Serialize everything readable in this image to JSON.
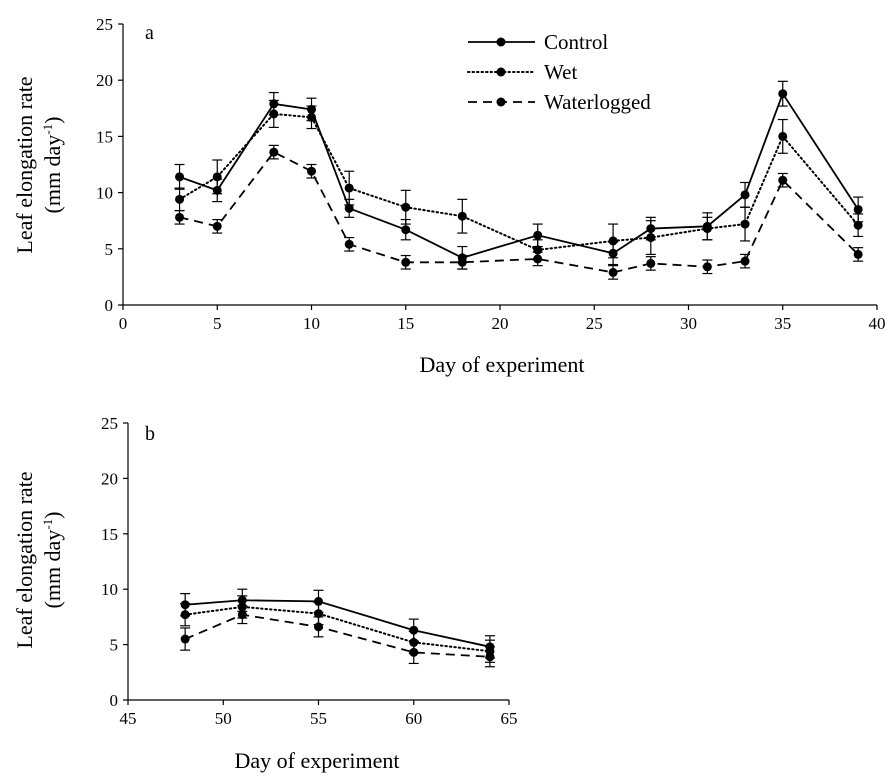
{
  "chart_data": [
    {
      "panel": "a",
      "type": "line",
      "xlabel": "Day of experiment",
      "ylabel": "Leaf elongation rate",
      "ylabel_unit": "(mm day",
      "ylabel_unit_sup": "-1",
      "ylabel_unit_close": ")",
      "xlim": [
        0,
        40
      ],
      "ylim": [
        0,
        25
      ],
      "xticks": [
        0,
        5,
        10,
        15,
        20,
        25,
        30,
        35,
        40
      ],
      "yticks": [
        0,
        5,
        10,
        15,
        20,
        25
      ],
      "grid": false,
      "legend": "top-center",
      "x": [
        3,
        5,
        8,
        10,
        12,
        15,
        18,
        22,
        26,
        28,
        31,
        33,
        35,
        39
      ],
      "series": [
        {
          "name": "Control",
          "style": "solid",
          "values": [
            11.4,
            10.2,
            17.9,
            17.4,
            8.6,
            6.7,
            4.2,
            6.2,
            4.6,
            6.8,
            7.0,
            9.8,
            18.8,
            8.5
          ],
          "errors": [
            1.1,
            1.0,
            1.0,
            1.0,
            0.8,
            0.9,
            1.0,
            1.0,
            1.0,
            1.0,
            1.2,
            1.1,
            1.1,
            1.1
          ]
        },
        {
          "name": "Wet",
          "style": "dotted",
          "values": [
            9.4,
            11.4,
            17.0,
            16.7,
            10.4,
            8.7,
            7.9,
            4.9,
            5.7,
            6.0,
            6.8,
            7.2,
            15.0,
            7.1
          ],
          "errors": [
            1.0,
            1.5,
            1.2,
            1.0,
            1.5,
            1.5,
            1.5,
            0.9,
            1.5,
            1.5,
            1.0,
            1.5,
            1.5,
            1.0
          ]
        },
        {
          "name": "Waterlogged",
          "style": "dashed",
          "values": [
            7.8,
            7.0,
            13.6,
            11.9,
            5.4,
            3.8,
            3.8,
            4.1,
            2.9,
            3.7,
            3.4,
            3.9,
            11.1,
            4.5
          ],
          "errors": [
            0.6,
            0.6,
            0.6,
            0.6,
            0.6,
            0.6,
            0.6,
            0.6,
            0.6,
            0.6,
            0.6,
            0.6,
            0.6,
            0.6
          ]
        }
      ]
    },
    {
      "panel": "b",
      "type": "line",
      "xlabel": "Day of experiment",
      "ylabel": "Leaf elongation rate",
      "ylabel_unit": "(mm day",
      "ylabel_unit_sup": "-1",
      "ylabel_unit_close": ")",
      "xlim": [
        45,
        65
      ],
      "ylim": [
        0,
        25
      ],
      "xticks": [
        45,
        50,
        55,
        60,
        65
      ],
      "yticks": [
        0,
        5,
        10,
        15,
        20,
        25
      ],
      "grid": false,
      "x": [
        48,
        51,
        55,
        60,
        64
      ],
      "series": [
        {
          "name": "Control",
          "style": "solid",
          "values": [
            8.6,
            9.0,
            8.9,
            6.3,
            4.8
          ],
          "errors": [
            1.0,
            1.0,
            1.0,
            1.0,
            1.0
          ]
        },
        {
          "name": "Wet",
          "style": "dotted",
          "values": [
            7.7,
            8.4,
            7.8,
            5.2,
            4.4
          ],
          "errors": [
            1.0,
            1.0,
            1.0,
            1.0,
            1.0
          ]
        },
        {
          "name": "Waterlogged",
          "style": "dashed",
          "values": [
            5.5,
            7.7,
            6.6,
            4.3,
            3.9
          ],
          "errors": [
            1.0,
            0.8,
            0.9,
            1.0,
            0.9
          ]
        }
      ]
    }
  ]
}
